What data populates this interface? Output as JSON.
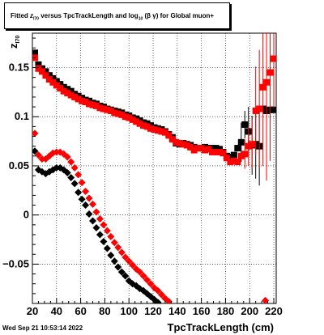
{
  "title": {
    "prefix": "Fitted",
    "var": "z",
    "var_sub": "I70",
    "middle": "versus TpcTrackLength and log",
    "log_sub": "10",
    "suffix": "(β  γ) for Global muon+"
  },
  "footer": {
    "date": "Wed Sep 21 10:53:14 2022"
  },
  "colors": {
    "black_series": "#000000",
    "red_series": "#ff0000",
    "grid": "#000000"
  },
  "chart_data": {
    "type": "scatter",
    "title": "Fitted z_I70 versus TpcTrackLength and log_10 (β γ) for Global muon+",
    "xlabel": "TpcTrackLength (cm)",
    "ylabel": "z_I70",
    "xlim": [
      20,
      222
    ],
    "ylim": [
      -0.09,
      0.185
    ],
    "x_ticks": [
      20,
      40,
      60,
      80,
      100,
      120,
      140,
      160,
      180,
      200,
      220
    ],
    "y_ticks": [
      -0.05,
      0,
      0.05,
      0.1,
      0.15
    ],
    "y_tick_labels": [
      "−0.05",
      "0",
      "0.05",
      "0.1",
      "0.15"
    ],
    "grid": true,
    "series": [
      {
        "color": "#000000",
        "marker": "square",
        "points": [
          [
            22,
            0.165
          ],
          [
            25,
            0.153
          ],
          [
            28,
            0.149
          ],
          [
            31,
            0.146
          ],
          [
            34,
            0.142
          ],
          [
            37,
            0.139
          ],
          [
            40,
            0.136
          ],
          [
            43,
            0.133
          ],
          [
            46,
            0.13
          ],
          [
            49,
            0.128
          ],
          [
            52,
            0.126
          ],
          [
            55,
            0.123
          ],
          [
            58,
            0.121
          ],
          [
            61,
            0.119
          ],
          [
            64,
            0.117
          ],
          [
            67,
            0.116
          ],
          [
            70,
            0.114
          ],
          [
            73,
            0.113
          ],
          [
            76,
            0.111
          ],
          [
            79,
            0.11
          ],
          [
            82,
            0.108
          ],
          [
            85,
            0.107
          ],
          [
            88,
            0.106
          ],
          [
            91,
            0.105
          ],
          [
            94,
            0.104
          ],
          [
            97,
            0.102
          ],
          [
            100,
            0.101
          ],
          [
            103,
            0.099
          ],
          [
            106,
            0.098
          ],
          [
            109,
            0.096
          ],
          [
            112,
            0.094
          ],
          [
            115,
            0.093
          ],
          [
            118,
            0.091
          ],
          [
            121,
            0.089
          ],
          [
            124,
            0.088
          ],
          [
            127,
            0.087
          ],
          [
            130,
            0.085
          ],
          [
            133,
            0.082
          ],
          [
            136,
            0.079
          ],
          [
            139,
            0.073
          ],
          [
            142,
            0.072
          ],
          [
            145,
            0.073
          ],
          [
            148,
            0.072
          ],
          [
            151,
            0.071
          ],
          [
            154,
            0.069
          ],
          [
            157,
            0.068
          ],
          [
            160,
            0.068
          ],
          [
            163,
            0.069
          ],
          [
            166,
            0.068
          ],
          [
            169,
            0.068
          ],
          [
            172,
            0.068
          ],
          [
            175,
            0.067
          ],
          [
            178,
            0.064
          ],
          [
            181,
            0.06
          ],
          [
            184,
            0.059
          ],
          [
            187,
            0.061
          ],
          [
            190,
            0.068
          ],
          [
            193,
            0.074
          ],
          [
            196,
            0.092
          ],
          [
            199,
            0.085
          ],
          [
            202,
            0.071
          ],
          [
            205,
            0.072
          ],
          [
            208,
            0.07
          ],
          [
            211,
            0.108
          ],
          [
            214,
            0.106
          ],
          [
            217,
            0.107
          ],
          [
            220,
            0.107
          ]
        ],
        "errors": [
          [
            193,
            0.02
          ],
          [
            196,
            0.014
          ],
          [
            199,
            0.025
          ],
          [
            202,
            0.03
          ],
          [
            205,
            0.035
          ],
          [
            208,
            0.04
          ]
        ]
      },
      {
        "color": "#ff0000",
        "marker": "square",
        "points": [
          [
            22,
            0.16
          ],
          [
            25,
            0.149
          ],
          [
            28,
            0.146
          ],
          [
            31,
            0.142
          ],
          [
            34,
            0.138
          ],
          [
            37,
            0.135
          ],
          [
            40,
            0.132
          ],
          [
            43,
            0.129
          ],
          [
            46,
            0.126
          ],
          [
            49,
            0.124
          ],
          [
            52,
            0.122
          ],
          [
            55,
            0.12
          ],
          [
            58,
            0.118
          ],
          [
            61,
            0.116
          ],
          [
            64,
            0.115
          ],
          [
            67,
            0.113
          ],
          [
            70,
            0.112
          ],
          [
            73,
            0.111
          ],
          [
            76,
            0.109
          ],
          [
            79,
            0.108
          ],
          [
            82,
            0.107
          ],
          [
            85,
            0.106
          ],
          [
            88,
            0.104
          ],
          [
            91,
            0.103
          ],
          [
            94,
            0.102
          ],
          [
            97,
            0.1
          ],
          [
            100,
            0.099
          ],
          [
            103,
            0.097
          ],
          [
            106,
            0.095
          ],
          [
            109,
            0.093
          ],
          [
            112,
            0.091
          ],
          [
            115,
            0.09
          ],
          [
            118,
            0.088
          ],
          [
            121,
            0.087
          ],
          [
            124,
            0.086
          ],
          [
            127,
            0.085
          ],
          [
            130,
            0.084
          ],
          [
            133,
            0.081
          ],
          [
            136,
            0.077
          ],
          [
            139,
            0.074
          ],
          [
            142,
            0.073
          ],
          [
            145,
            0.072
          ],
          [
            148,
            0.071
          ],
          [
            151,
            0.069
          ],
          [
            154,
            0.066
          ],
          [
            157,
            0.068
          ],
          [
            160,
            0.068
          ],
          [
            163,
            0.066
          ],
          [
            166,
            0.067
          ],
          [
            169,
            0.064
          ],
          [
            172,
            0.064
          ],
          [
            175,
            0.064
          ],
          [
            178,
            0.063
          ],
          [
            181,
            0.058
          ],
          [
            184,
            0.054
          ],
          [
            187,
            0.055
          ],
          [
            190,
            0.054
          ],
          [
            193,
            0.06
          ],
          [
            196,
            0.062
          ],
          [
            199,
            0.07
          ],
          [
            202,
            0.072
          ],
          [
            205,
            0.106
          ],
          [
            208,
            0.108
          ],
          [
            211,
            0.13
          ],
          [
            214,
            0.135
          ],
          [
            217,
            0.145
          ],
          [
            220,
            0.159
          ]
        ],
        "errors": [
          [
            196,
            0.015
          ],
          [
            199,
            0.02
          ],
          [
            202,
            0.025
          ],
          [
            205,
            0.045
          ],
          [
            208,
            0.06
          ],
          [
            211,
            0.08
          ],
          [
            214,
            0.1
          ],
          [
            217,
            0.09
          ],
          [
            220,
            0.05
          ]
        ]
      },
      {
        "color": "#000000",
        "marker": "diamond",
        "points": [
          [
            22,
            0.065
          ],
          [
            25,
            0.046
          ],
          [
            28,
            0.044
          ],
          [
            31,
            0.042
          ],
          [
            34,
            0.044
          ],
          [
            37,
            0.046
          ],
          [
            40,
            0.048
          ],
          [
            43,
            0.048
          ],
          [
            46,
            0.046
          ],
          [
            49,
            0.043
          ],
          [
            52,
            0.038
          ],
          [
            55,
            0.032
          ],
          [
            58,
            0.023
          ],
          [
            61,
            0.016
          ],
          [
            64,
            0.01
          ],
          [
            67,
            0.001
          ],
          [
            70,
            -0.006
          ],
          [
            73,
            -0.013
          ],
          [
            76,
            -0.02
          ],
          [
            79,
            -0.027
          ],
          [
            82,
            -0.034
          ],
          [
            85,
            -0.041
          ],
          [
            88,
            -0.047
          ],
          [
            91,
            -0.053
          ],
          [
            94,
            -0.058
          ],
          [
            97,
            -0.062
          ],
          [
            100,
            -0.067
          ],
          [
            103,
            -0.07
          ],
          [
            106,
            -0.072
          ],
          [
            109,
            -0.075
          ],
          [
            112,
            -0.077
          ],
          [
            115,
            -0.08
          ],
          [
            118,
            -0.083
          ],
          [
            121,
            -0.086
          ],
          [
            124,
            -0.089
          ]
        ]
      },
      {
        "color": "#ff0000",
        "marker": "diamond",
        "points": [
          [
            22,
            0.083
          ],
          [
            25,
            0.061
          ],
          [
            28,
            0.057
          ],
          [
            31,
            0.057
          ],
          [
            34,
            0.06
          ],
          [
            37,
            0.063
          ],
          [
            40,
            0.064
          ],
          [
            43,
            0.064
          ],
          [
            46,
            0.062
          ],
          [
            49,
            0.059
          ],
          [
            52,
            0.054
          ],
          [
            55,
            0.048
          ],
          [
            58,
            0.041
          ],
          [
            61,
            0.033
          ],
          [
            64,
            0.024
          ],
          [
            67,
            0.017
          ],
          [
            70,
            0.011
          ],
          [
            73,
            0.003
          ],
          [
            76,
            -0.004
          ],
          [
            79,
            -0.01
          ],
          [
            82,
            -0.016
          ],
          [
            85,
            -0.022
          ],
          [
            88,
            -0.028
          ],
          [
            91,
            -0.033
          ],
          [
            94,
            -0.038
          ],
          [
            97,
            -0.043
          ],
          [
            100,
            -0.047
          ],
          [
            103,
            -0.051
          ],
          [
            106,
            -0.055
          ],
          [
            109,
            -0.058
          ],
          [
            112,
            -0.062
          ],
          [
            115,
            -0.066
          ],
          [
            118,
            -0.07
          ],
          [
            121,
            -0.074
          ],
          [
            124,
            -0.077
          ],
          [
            127,
            -0.081
          ],
          [
            130,
            -0.085
          ],
          [
            133,
            -0.088
          ],
          [
            213,
            -0.087
          ]
        ]
      }
    ]
  }
}
